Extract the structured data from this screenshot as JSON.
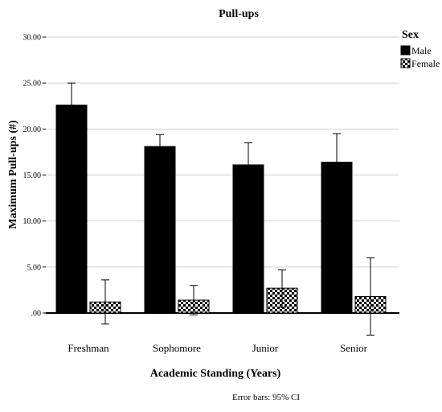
{
  "chart_data": {
    "type": "bar",
    "title": "Pull-ups",
    "xlabel": "Academic Standing (Years)",
    "ylabel": "Maximum Pull-ups (#)",
    "categories": [
      "Freshman",
      "Sophomore",
      "Junior",
      "Senior"
    ],
    "ylim": [
      -2.5,
      31.5
    ],
    "yticks": [
      ".00",
      "5.00",
      "10.00",
      "15.00",
      "20.00",
      "25.00",
      "30.00"
    ],
    "grid": true,
    "legend": {
      "title": "Sex",
      "position": "top-right"
    },
    "series": [
      {
        "name": "Male",
        "fill": "solid",
        "color": "#000000",
        "values": [
          22.6,
          18.1,
          16.1,
          16.4
        ],
        "ci_low": [
          20.2,
          16.8,
          13.8,
          13.5
        ],
        "ci_high": [
          25.0,
          19.4,
          18.5,
          19.5
        ]
      },
      {
        "name": "Female",
        "fill": "checker",
        "color": "#000000",
        "values": [
          1.2,
          1.4,
          2.7,
          1.8
        ],
        "ci_low": [
          -1.2,
          -0.2,
          0.6,
          -2.4
        ],
        "ci_high": [
          3.6,
          3.0,
          4.7,
          6.0
        ]
      }
    ],
    "note": "Error bars: 95% CI"
  }
}
